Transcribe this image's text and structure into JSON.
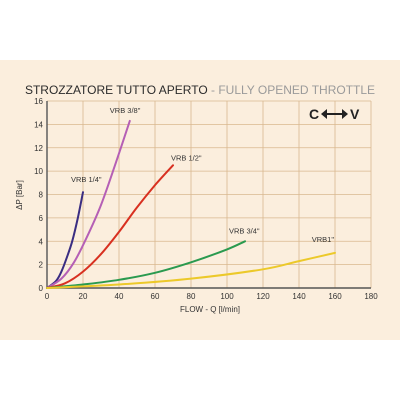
{
  "title": {
    "italian": "STROZZATORE TUTTO APERTO",
    "separator": " - ",
    "english": "FULLY OPENED THROTTLE"
  },
  "badge": {
    "left": "C",
    "right": "V",
    "arrow_icon": "double-arrow-icon"
  },
  "colors": {
    "panel_bg": "#fbeedd",
    "grid": "#d9b88f"
  },
  "chart_data": {
    "type": "line",
    "xlabel": "FLOW - Q [l/min]",
    "ylabel": "ΔP [Bar]",
    "xlim": [
      0,
      180
    ],
    "ylim": [
      0,
      16
    ],
    "x_ticks": [
      "0",
      "20",
      "40",
      "60",
      "80",
      "100",
      "120",
      "140",
      "160",
      "180"
    ],
    "y_ticks": [
      "0",
      "2",
      "4",
      "6",
      "8",
      "10",
      "12",
      "14",
      "16"
    ],
    "grid": true,
    "series": [
      {
        "name": "VRB 1/4\"",
        "color": "#3a2d82",
        "x": [
          0,
          5,
          8,
          11,
          14,
          17,
          20
        ],
        "y": [
          0,
          0.6,
          1.4,
          2.6,
          4.0,
          5.9,
          8.2
        ]
      },
      {
        "name": "VRB 3/8\"",
        "color": "#b55fb5",
        "x": [
          0,
          8,
          15,
          22,
          30,
          38,
          46
        ],
        "y": [
          0,
          0.8,
          2.2,
          4.3,
          7.1,
          10.6,
          14.3
        ]
      },
      {
        "name": "VRB 1/2\"",
        "color": "#d83020",
        "x": [
          0,
          10,
          20,
          30,
          40,
          50,
          60,
          70
        ],
        "y": [
          0,
          0.4,
          1.4,
          2.9,
          4.8,
          6.9,
          8.8,
          10.5
        ]
      },
      {
        "name": "VRB 3/4\"",
        "color": "#2a9a4f",
        "x": [
          0,
          20,
          40,
          60,
          80,
          100,
          110
        ],
        "y": [
          0,
          0.3,
          0.7,
          1.3,
          2.2,
          3.3,
          4.0
        ]
      },
      {
        "name": "VRB1\"",
        "color": "#ecc92a",
        "x": [
          0,
          40,
          80,
          120,
          140,
          160
        ],
        "y": [
          0,
          0.3,
          0.8,
          1.6,
          2.3,
          3.0
        ]
      }
    ]
  }
}
